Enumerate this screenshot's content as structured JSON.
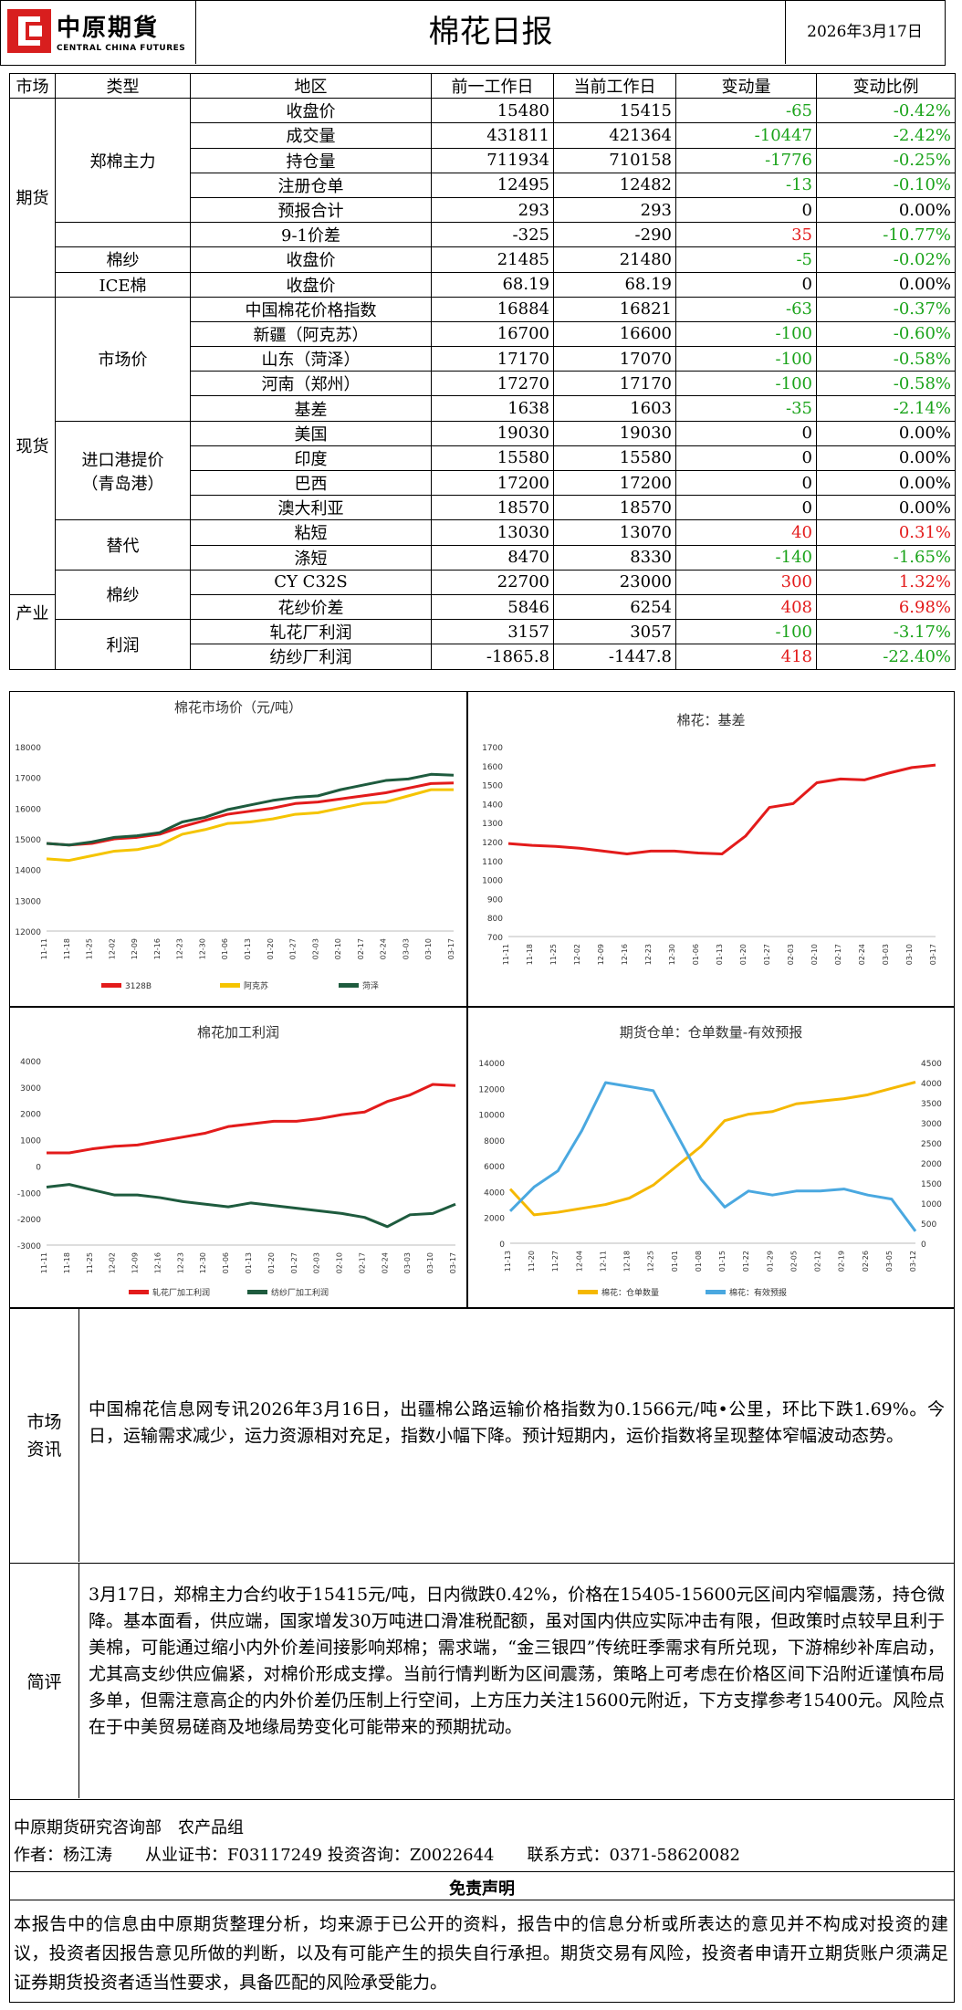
{
  "header": {
    "logo_cn": "中原期貨",
    "logo_en": "CENTRAL CHINA FUTURES",
    "title": "棉花日报",
    "date": "2026年3月17日"
  },
  "table": {
    "headers": [
      "市场",
      "类型",
      "地区",
      "前一工作日",
      "当前工作日",
      "变动量",
      "变动比例"
    ],
    "sections": [
      "期货",
      "现货",
      "产业"
    ],
    "groups": [
      "郑棉主力",
      "棉纱",
      "ICE棉",
      "市场价",
      "进口港提价\n（青岛港）",
      "替代",
      "棉纱",
      "利润"
    ],
    "rows": [
      {
        "item": "收盘价",
        "prev": "15480",
        "cur": "15415",
        "chg": "-65",
        "pct": "-0.42%",
        "dir": "neg"
      },
      {
        "item": "成交量",
        "prev": "431811",
        "cur": "421364",
        "chg": "-10447",
        "pct": "-2.42%",
        "dir": "neg"
      },
      {
        "item": "持仓量",
        "prev": "711934",
        "cur": "710158",
        "chg": "-1776",
        "pct": "-0.25%",
        "dir": "neg"
      },
      {
        "item": "注册仓单",
        "prev": "12495",
        "cur": "12482",
        "chg": "-13",
        "pct": "-0.10%",
        "dir": "neg"
      },
      {
        "item": "预报合计",
        "prev": "293",
        "cur": "293",
        "chg": "0",
        "pct": "0.00%",
        "dir": "zero"
      },
      {
        "item": "9-1价差",
        "prev": "-325",
        "cur": "-290",
        "chg": "35",
        "pct": "-10.77%",
        "dir": "mixed"
      },
      {
        "item": "收盘价",
        "prev": "21485",
        "cur": "21480",
        "chg": "-5",
        "pct": "-0.02%",
        "dir": "neg"
      },
      {
        "item": "收盘价",
        "prev": "68.19",
        "cur": "68.19",
        "chg": "0",
        "pct": "0.00%",
        "dir": "zero"
      },
      {
        "item": "中国棉花价格指数",
        "prev": "16884",
        "cur": "16821",
        "chg": "-63",
        "pct": "-0.37%",
        "dir": "neg"
      },
      {
        "item": "新疆（阿克苏）",
        "prev": "16700",
        "cur": "16600",
        "chg": "-100",
        "pct": "-0.60%",
        "dir": "neg"
      },
      {
        "item": "山东（菏泽）",
        "prev": "17170",
        "cur": "17070",
        "chg": "-100",
        "pct": "-0.58%",
        "dir": "neg"
      },
      {
        "item": "河南（郑州）",
        "prev": "17270",
        "cur": "17170",
        "chg": "-100",
        "pct": "-0.58%",
        "dir": "neg"
      },
      {
        "item": "基差",
        "prev": "1638",
        "cur": "1603",
        "chg": "-35",
        "pct": "-2.14%",
        "dir": "neg"
      },
      {
        "item": "美国",
        "prev": "19030",
        "cur": "19030",
        "chg": "0",
        "pct": "0.00%",
        "dir": "zero"
      },
      {
        "item": "印度",
        "prev": "15580",
        "cur": "15580",
        "chg": "0",
        "pct": "0.00%",
        "dir": "zero"
      },
      {
        "item": "巴西",
        "prev": "17200",
        "cur": "17200",
        "chg": "0",
        "pct": "0.00%",
        "dir": "zero"
      },
      {
        "item": "澳大利亚",
        "prev": "18570",
        "cur": "18570",
        "chg": "0",
        "pct": "0.00%",
        "dir": "zero"
      },
      {
        "item": "粘短",
        "prev": "13030",
        "cur": "13070",
        "chg": "40",
        "pct": "0.31%",
        "dir": "pos"
      },
      {
        "item": "涤短",
        "prev": "8470",
        "cur": "8330",
        "chg": "-140",
        "pct": "-1.65%",
        "dir": "neg"
      },
      {
        "item": "CY C32S",
        "prev": "22700",
        "cur": "23000",
        "chg": "300",
        "pct": "1.32%",
        "dir": "pos"
      },
      {
        "item": "花纱价差",
        "prev": "5846",
        "cur": "6254",
        "chg": "408",
        "pct": "6.98%",
        "dir": "pos"
      },
      {
        "item": "轧花厂利润",
        "prev": "3157",
        "cur": "3057",
        "chg": "-100",
        "pct": "-3.17%",
        "dir": "neg"
      },
      {
        "item": "纺纱厂利润",
        "prev": "-1865.8",
        "cur": "-1447.8",
        "chg": "418",
        "pct": "-22.40%",
        "dir": "mixed"
      }
    ]
  },
  "chart_data": [
    {
      "type": "line",
      "title": "棉花市场价（元/吨）",
      "x": [
        "11-11",
        "11-18",
        "11-25",
        "12-02",
        "12-09",
        "12-16",
        "12-23",
        "12-30",
        "01-06",
        "01-13",
        "01-20",
        "01-27",
        "02-03",
        "02-10",
        "02-17",
        "02-24",
        "03-03",
        "03-10",
        "03-17"
      ],
      "ylim": [
        12000,
        18000
      ],
      "series": [
        {
          "name": "3128B",
          "color": "#e31b1b",
          "values": [
            14850,
            14800,
            14850,
            15000,
            15050,
            15150,
            15400,
            15600,
            15800,
            15900,
            16000,
            16150,
            16200,
            16300,
            16400,
            16500,
            16650,
            16800,
            16820
          ]
        },
        {
          "name": "阿克苏",
          "color": "#f5c400",
          "values": [
            14350,
            14300,
            14450,
            14600,
            14650,
            14800,
            15150,
            15300,
            15500,
            15550,
            15650,
            15800,
            15850,
            16000,
            16150,
            16200,
            16400,
            16600,
            16600
          ]
        },
        {
          "name": "菏泽",
          "color": "#1e5b3e",
          "values": [
            14850,
            14800,
            14900,
            15050,
            15100,
            15200,
            15550,
            15700,
            15950,
            16100,
            16250,
            16350,
            16400,
            16600,
            16750,
            16900,
            16950,
            17100,
            17070
          ]
        }
      ]
    },
    {
      "type": "line",
      "title": "棉花：基差",
      "x": [
        "11-11",
        "11-18",
        "11-25",
        "12-02",
        "12-09",
        "12-16",
        "12-23",
        "12-30",
        "01-06",
        "01-13",
        "01-20",
        "01-27",
        "02-03",
        "02-10",
        "02-17",
        "02-24",
        "03-03",
        "03-10",
        "03-17"
      ],
      "ylim": [
        700,
        1700
      ],
      "series": [
        {
          "name": "基差",
          "color": "#e31b1b",
          "values": [
            1190,
            1180,
            1175,
            1165,
            1150,
            1135,
            1150,
            1150,
            1140,
            1135,
            1230,
            1380,
            1400,
            1510,
            1530,
            1525,
            1560,
            1590,
            1603
          ]
        }
      ]
    },
    {
      "type": "line",
      "title": "棉花加工利润",
      "x": [
        "11-11",
        "11-18",
        "11-25",
        "12-02",
        "12-09",
        "12-16",
        "12-23",
        "12-30",
        "01-06",
        "01-13",
        "01-20",
        "01-27",
        "02-03",
        "02-10",
        "02-17",
        "02-24",
        "03-03",
        "03-10",
        "03-17"
      ],
      "ylim": [
        -3000,
        4000
      ],
      "series": [
        {
          "name": "轧花厂加工利润",
          "color": "#e31b1b",
          "values": [
            500,
            500,
            650,
            750,
            800,
            950,
            1100,
            1250,
            1500,
            1600,
            1700,
            1700,
            1800,
            1950,
            2050,
            2450,
            2700,
            3100,
            3057
          ]
        },
        {
          "name": "纺纱厂加工利润",
          "color": "#1e5b3e",
          "values": [
            -800,
            -700,
            -900,
            -1100,
            -1100,
            -1200,
            -1350,
            -1450,
            -1550,
            -1400,
            -1500,
            -1600,
            -1700,
            -1800,
            -1950,
            -2300,
            -1850,
            -1800,
            -1448
          ]
        }
      ]
    },
    {
      "type": "line",
      "title": "期货仓单：仓单数量-有效预报",
      "x": [
        "11-13",
        "11-20",
        "11-27",
        "12-04",
        "12-11",
        "12-18",
        "12-25",
        "01-01",
        "01-08",
        "01-15",
        "01-22",
        "01-29",
        "02-05",
        "02-12",
        "02-19",
        "02-26",
        "03-05",
        "03-12"
      ],
      "ylim": [
        0,
        14000
      ],
      "y2lim": [
        0,
        4500
      ],
      "series": [
        {
          "name": "棉花：仓单数量",
          "color": "#f5b800",
          "axis": "left",
          "values": [
            4200,
            2200,
            2400,
            2700,
            3000,
            3500,
            4500,
            6000,
            7500,
            9500,
            10000,
            10200,
            10800,
            11000,
            11200,
            11500,
            12000,
            12480
          ]
        },
        {
          "name": "棉花：有效预报",
          "color": "#4aa8e0",
          "axis": "right",
          "values": [
            800,
            1400,
            1800,
            2800,
            4000,
            3900,
            3800,
            2700,
            1600,
            900,
            1300,
            1200,
            1300,
            1300,
            1350,
            1200,
            1100,
            300
          ]
        }
      ]
    }
  ],
  "sections": {
    "market_label": "市场资讯",
    "market_text": "中国棉花信息网专讯2026年3月16日，出疆棉公路运输价格指数为0.1566元/吨•公里，环比下跌1.69%。今日，运输需求减少，运力资源相对充足，指数小幅下降。预计短期内，运价指数将呈现整体窄幅波动态势。",
    "review_label": "简评",
    "review_text": "3月17日，郑棉主力合约收于15415元/吨，日内微跌0.42%，价格在15405-15600元区间内窄幅震荡，持仓微降。基本面看，供应端，国家增发30万吨进口滑准税配额，虽对国内供应实际冲击有限，但政策时点较早且利于美棉，可能通过缩小内外价差间接影响郑棉；需求端，“金三银四”传统旺季需求有所兑现，下游棉纱补库启动，尤其高支纱供应偏紧，对棉价形成支撑。当前行情判断为区间震荡，策略上可考虑在价格区间下沿附近谨慎布局多单，但需注意高企的内外价差仍压制上行空间，上方压力关注15600元附近，下方支撑参考15400元。风险点在于中美贸易磋商及地缘局势变化可能带来的预期扰动。"
  },
  "footer": {
    "dept": "中原期货研究咨询部　农产品组",
    "author": "作者：杨江涛　　从业证书：F03117249 投资咨询：Z0022644　　联系方式：0371-58620082",
    "disclaimer_title": "免责声明",
    "disclaimer": "本报告中的信息由中原期货整理分析，均来源于已公开的资料，报告中的信息分析或所表达的意见并不构成对投资的建议，投资者因报告意见所做的判断，以及有可能产生的损失自行承担。期货交易有风险，投资者申请开立期货账户须满足证券期货投资者适当性要求，具备匹配的风险承受能力。"
  }
}
